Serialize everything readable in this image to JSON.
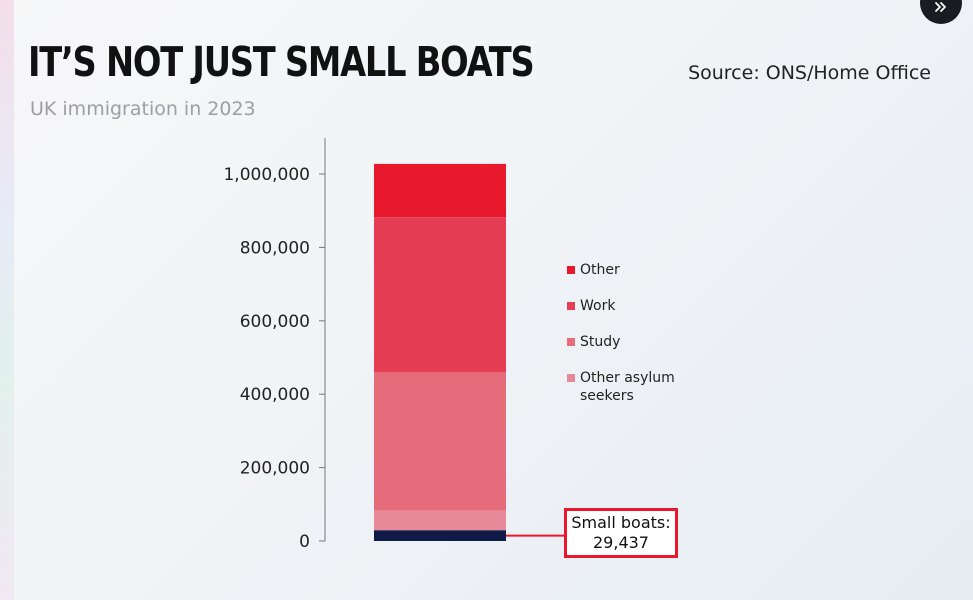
{
  "header": {
    "title": "IT’S NOT JUST SMALL BOATS",
    "subtitle": "UK immigration in 2023",
    "source": "Source: ONS/Home Office"
  },
  "controls": {
    "corner_icon": "double-chevron-right-icon"
  },
  "colors": {
    "small_boats": "#0f1a46",
    "other_asylum": "#e68a99",
    "study": "#e66c7b",
    "work": "#e53e54",
    "other": "#e8192c",
    "callout_border": "#e8192c"
  },
  "chart_data": {
    "type": "bar",
    "stacked": true,
    "title": "IT’S NOT JUST SMALL BOATS",
    "subtitle": "UK immigration in 2023",
    "ylim": [
      0,
      1000000
    ],
    "y_ticks": [
      0,
      200000,
      400000,
      600000,
      800000,
      1000000
    ],
    "y_tick_labels": [
      "0",
      "200,000",
      "400,000",
      "600,000",
      "800,000",
      "1,000,000"
    ],
    "legend_position": "right",
    "grid": false,
    "segments": [
      {
        "name": "Small boats",
        "value": 29437,
        "color": "#0f1a46"
      },
      {
        "name": "Other asylum seekers",
        "value": 53000,
        "color": "#e68a99"
      },
      {
        "name": "Study",
        "value": 377000,
        "color": "#e66c7b"
      },
      {
        "name": "Work",
        "value": 423000,
        "color": "#e53e54"
      },
      {
        "name": "Other",
        "value": 145000,
        "color": "#e8192c"
      }
    ],
    "legend": [
      {
        "label": "Other",
        "color": "#e8192c"
      },
      {
        "label": "Work",
        "color": "#e53e54"
      },
      {
        "label": "Study",
        "color": "#e66c7b"
      },
      {
        "label": "Other asylum seekers",
        "color": "#e68a99"
      }
    ],
    "callout": {
      "series": "Small boats",
      "line1": "Small boats:",
      "line2": "29,437"
    }
  }
}
